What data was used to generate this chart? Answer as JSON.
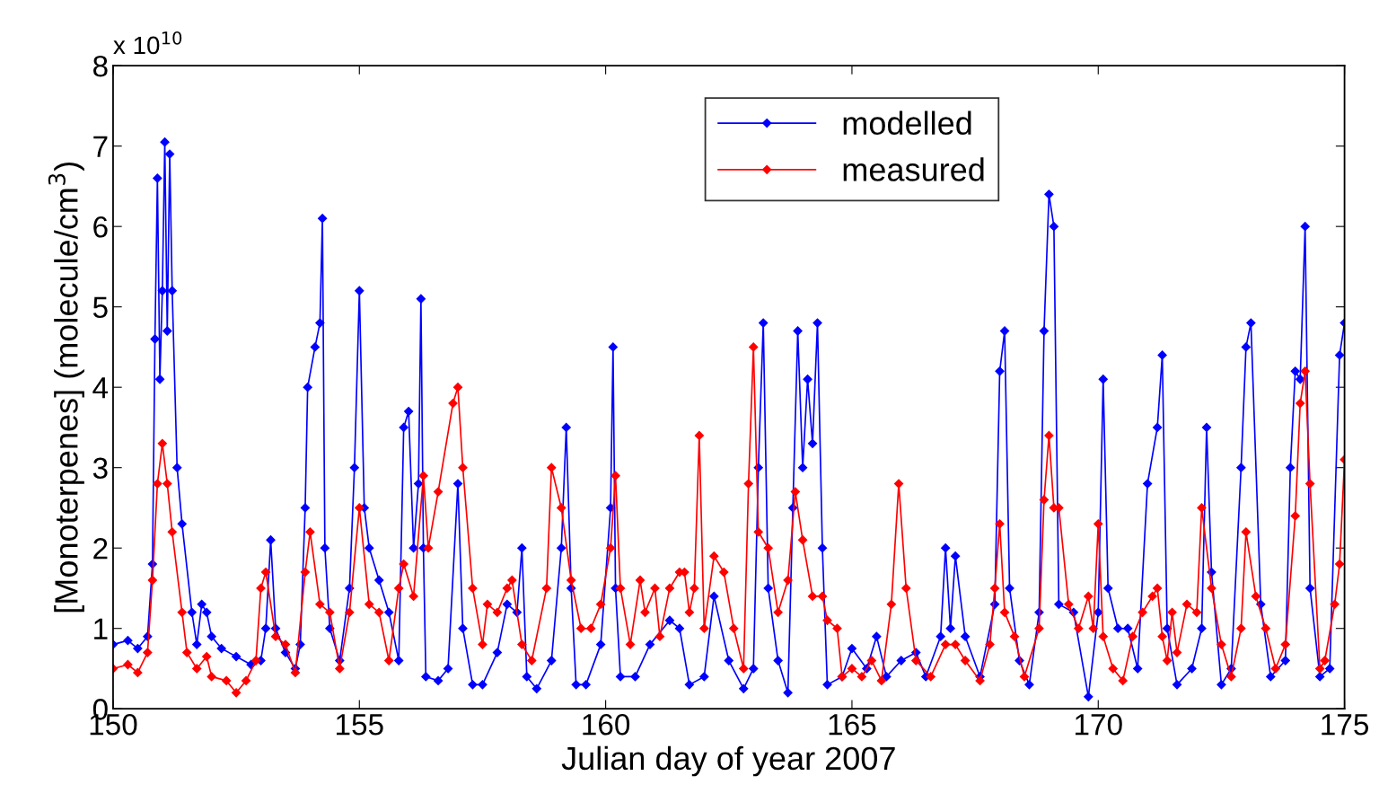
{
  "chart_data": {
    "type": "line",
    "xlabel": "Julian day of year 2007",
    "ylabel": "[Monoterpenes] (molecule/cm$^{3}$)",
    "annotations": [
      "x 10$^{10}$"
    ],
    "xlim": [
      150,
      175
    ],
    "xticks": [
      150,
      155,
      160,
      165,
      170,
      175
    ],
    "ylim": [
      0,
      8
    ],
    "yticks": [
      0,
      1,
      2,
      3,
      4,
      5,
      6,
      7,
      8
    ],
    "grid": false,
    "legend": "top",
    "marker": "diamond",
    "line_style": "solid",
    "series": [
      {
        "name": "modelled",
        "color": "#0000ff",
        "x": [
          150.0,
          150.3,
          150.5,
          150.7,
          150.8,
          150.85,
          150.9,
          150.95,
          151.0,
          151.05,
          151.1,
          151.15,
          151.2,
          151.3,
          151.4,
          151.6,
          151.7,
          151.8,
          151.9,
          152.0,
          152.2,
          152.5,
          152.8,
          153.0,
          153.1,
          153.2,
          153.3,
          153.5,
          153.7,
          153.8,
          153.9,
          153.95,
          154.1,
          154.2,
          154.25,
          154.3,
          154.4,
          154.6,
          154.8,
          154.9,
          155.0,
          155.1,
          155.2,
          155.4,
          155.6,
          155.8,
          155.9,
          156.0,
          156.1,
          156.2,
          156.25,
          156.3,
          156.35,
          156.6,
          156.8,
          157.0,
          157.1,
          157.3,
          157.5,
          157.8,
          158.0,
          158.2,
          158.3,
          158.4,
          158.6,
          158.9,
          159.1,
          159.2,
          159.3,
          159.4,
          159.6,
          159.9,
          160.1,
          160.15,
          160.2,
          160.3,
          160.6,
          160.9,
          161.3,
          161.5,
          161.7,
          162.0,
          162.2,
          162.5,
          162.8,
          163.0,
          163.1,
          163.2,
          163.3,
          163.5,
          163.7,
          163.8,
          163.9,
          164.0,
          164.1,
          164.2,
          164.3,
          164.4,
          164.5,
          164.8,
          165.0,
          165.3,
          165.5,
          165.7,
          166.0,
          166.3,
          166.5,
          166.8,
          166.9,
          167.0,
          167.1,
          167.3,
          167.6,
          167.9,
          168.0,
          168.1,
          168.2,
          168.4,
          168.6,
          168.8,
          168.9,
          169.0,
          169.1,
          169.2,
          169.5,
          169.8,
          170.0,
          170.1,
          170.2,
          170.4,
          170.6,
          170.8,
          171.0,
          171.2,
          171.3,
          171.4,
          171.6,
          171.9,
          172.1,
          172.2,
          172.3,
          172.5,
          172.7,
          172.9,
          173.0,
          173.1,
          173.3,
          173.5,
          173.8,
          173.9,
          174.0,
          174.1,
          174.2,
          174.3,
          174.5,
          174.7,
          174.9,
          175.0
        ],
        "values": [
          0.8,
          0.85,
          0.75,
          0.9,
          1.8,
          4.6,
          6.6,
          4.1,
          5.2,
          7.05,
          4.7,
          6.9,
          5.2,
          3.0,
          2.3,
          1.2,
          0.8,
          1.3,
          1.2,
          0.9,
          0.75,
          0.65,
          0.55,
          0.6,
          1.0,
          2.1,
          1.0,
          0.7,
          0.5,
          0.8,
          2.5,
          4.0,
          4.5,
          4.8,
          6.1,
          2.0,
          1.0,
          0.6,
          1.5,
          3.0,
          5.2,
          2.5,
          2.0,
          1.6,
          1.2,
          0.6,
          3.5,
          3.7,
          2.0,
          2.8,
          5.1,
          2.0,
          0.4,
          0.35,
          0.5,
          2.8,
          1.0,
          0.3,
          0.3,
          0.7,
          1.3,
          1.2,
          2.0,
          0.4,
          0.25,
          0.6,
          2.0,
          3.5,
          1.5,
          0.3,
          0.3,
          0.8,
          2.5,
          4.5,
          1.5,
          0.4,
          0.4,
          0.8,
          1.1,
          1.0,
          0.3,
          0.4,
          1.4,
          0.6,
          0.25,
          0.5,
          3.0,
          4.8,
          1.5,
          0.6,
          0.2,
          2.5,
          4.7,
          3.0,
          4.1,
          3.3,
          4.8,
          2.0,
          0.3,
          0.4,
          0.75,
          0.5,
          0.9,
          0.4,
          0.6,
          0.7,
          0.4,
          0.9,
          2.0,
          1.0,
          1.9,
          0.9,
          0.4,
          1.3,
          4.2,
          4.7,
          1.5,
          0.6,
          0.3,
          1.2,
          4.7,
          6.4,
          6.0,
          1.3,
          1.2,
          0.15,
          1.2,
          4.1,
          1.5,
          1.0,
          1.0,
          0.5,
          2.8,
          3.5,
          4.4,
          1.0,
          0.3,
          0.5,
          1.0,
          3.5,
          1.7,
          0.3,
          0.5,
          3.0,
          4.5,
          4.8,
          1.3,
          0.4,
          0.6,
          3.0,
          4.2,
          4.1,
          6.0,
          1.5,
          0.4,
          0.5,
          4.4,
          4.8
        ]
      },
      {
        "name": "measured",
        "color": "#ff0000",
        "x": [
          150.0,
          150.3,
          150.5,
          150.7,
          150.8,
          150.9,
          151.0,
          151.1,
          151.2,
          151.4,
          151.5,
          151.7,
          151.9,
          152.0,
          152.3,
          152.5,
          152.7,
          152.9,
          153.0,
          153.1,
          153.3,
          153.5,
          153.7,
          153.9,
          154.0,
          154.2,
          154.4,
          154.6,
          154.8,
          155.0,
          155.2,
          155.4,
          155.6,
          155.8,
          155.9,
          156.1,
          156.3,
          156.4,
          156.6,
          156.9,
          157.0,
          157.1,
          157.3,
          157.5,
          157.6,
          157.8,
          158.0,
          158.1,
          158.3,
          158.5,
          158.8,
          158.9,
          159.1,
          159.3,
          159.5,
          159.7,
          159.9,
          160.1,
          160.2,
          160.3,
          160.5,
          160.7,
          160.8,
          161.0,
          161.1,
          161.3,
          161.5,
          161.6,
          161.7,
          161.8,
          161.9,
          162.0,
          162.2,
          162.4,
          162.6,
          162.8,
          162.9,
          163.0,
          163.1,
          163.3,
          163.5,
          163.7,
          163.85,
          164.0,
          164.2,
          164.4,
          164.5,
          164.7,
          164.8,
          165.0,
          165.2,
          165.4,
          165.6,
          165.8,
          165.95,
          166.1,
          166.3,
          166.6,
          166.9,
          167.1,
          167.3,
          167.6,
          167.8,
          167.9,
          168.0,
          168.1,
          168.3,
          168.5,
          168.8,
          168.9,
          169.0,
          169.1,
          169.2,
          169.4,
          169.6,
          169.8,
          169.9,
          170.0,
          170.1,
          170.3,
          170.5,
          170.7,
          170.9,
          171.1,
          171.2,
          171.3,
          171.4,
          171.5,
          171.6,
          171.8,
          172.0,
          172.1,
          172.3,
          172.5,
          172.7,
          172.9,
          173.0,
          173.2,
          173.4,
          173.6,
          173.8,
          174.0,
          174.1,
          174.2,
          174.3,
          174.5,
          174.6,
          174.8,
          174.9,
          175.0
        ],
        "values": [
          0.5,
          0.55,
          0.45,
          0.7,
          1.6,
          2.8,
          3.3,
          2.8,
          2.2,
          1.2,
          0.7,
          0.5,
          0.65,
          0.4,
          0.35,
          0.2,
          0.35,
          0.6,
          1.5,
          1.7,
          0.9,
          0.8,
          0.45,
          1.7,
          2.2,
          1.3,
          1.2,
          0.5,
          1.2,
          2.5,
          1.3,
          1.2,
          0.6,
          1.5,
          1.8,
          1.4,
          2.9,
          2.0,
          2.7,
          3.8,
          4.0,
          3.0,
          1.5,
          0.8,
          1.3,
          1.2,
          1.5,
          1.6,
          0.8,
          0.6,
          1.5,
          3.0,
          2.5,
          1.6,
          1.0,
          1.0,
          1.3,
          2.0,
          2.9,
          1.5,
          0.8,
          1.6,
          1.2,
          1.5,
          0.9,
          1.5,
          1.7,
          1.7,
          1.2,
          1.5,
          3.4,
          1.0,
          1.9,
          1.7,
          1.0,
          0.5,
          2.8,
          4.5,
          2.2,
          2.0,
          1.2,
          1.6,
          2.7,
          2.1,
          1.4,
          1.4,
          1.1,
          1.0,
          0.4,
          0.5,
          0.4,
          0.6,
          0.35,
          1.3,
          2.8,
          1.5,
          0.6,
          0.4,
          0.8,
          0.8,
          0.6,
          0.35,
          0.8,
          1.5,
          2.3,
          1.2,
          0.9,
          0.4,
          1.0,
          2.6,
          3.4,
          2.5,
          2.5,
          1.3,
          1.0,
          1.4,
          1.0,
          2.3,
          0.9,
          0.5,
          0.35,
          0.9,
          1.2,
          1.4,
          1.5,
          0.9,
          0.6,
          1.2,
          0.7,
          1.3,
          1.2,
          2.5,
          1.5,
          0.8,
          0.4,
          1.0,
          2.2,
          1.4,
          1.0,
          0.5,
          0.8,
          2.4,
          3.8,
          4.2,
          2.8,
          0.5,
          0.6,
          1.3,
          1.8,
          3.1
        ]
      }
    ]
  }
}
